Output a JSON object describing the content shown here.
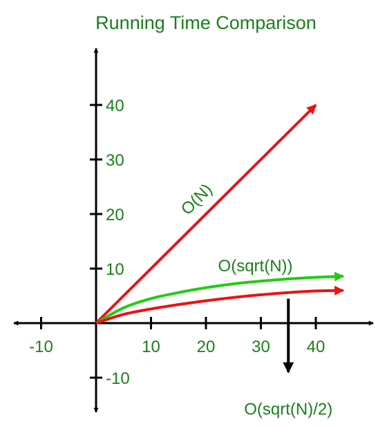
{
  "chart_data": {
    "type": "line",
    "title": "Running Time Comparison",
    "xlabel": "",
    "ylabel": "",
    "xlim": [
      -12,
      48
    ],
    "ylim": [
      -13,
      45
    ],
    "xticks": [
      -10,
      10,
      20,
      30,
      40
    ],
    "yticks": [
      40,
      30,
      20,
      10,
      -10
    ],
    "grid": false,
    "series": [
      {
        "name": "O(N)",
        "color": "#ee1111",
        "x": [
          0,
          40
        ],
        "y": [
          0,
          40
        ]
      },
      {
        "name": "O(sqrt(N))",
        "color": "#22cc11",
        "x": [
          0,
          5,
          10,
          15,
          20,
          25,
          30,
          35,
          40,
          45
        ],
        "y": [
          0,
          2.8,
          4.5,
          5.6,
          6.5,
          7.2,
          7.7,
          8.1,
          8.4,
          8.6
        ]
      },
      {
        "name": "",
        "color": "#ee1111",
        "x": [
          0,
          5,
          10,
          15,
          20,
          25,
          30,
          35,
          40,
          45
        ],
        "y": [
          0,
          1.6,
          2.6,
          3.4,
          4.1,
          4.7,
          5.2,
          5.6,
          5.9,
          6.0
        ]
      }
    ],
    "annotations": [
      {
        "text": "O(N)",
        "at": [
          19,
          22
        ],
        "rotate": -45
      },
      {
        "text": "O(sqrt(N))",
        "at": [
          29,
          9.5
        ]
      },
      {
        "text": "O(sqrt(N)/2)",
        "at": [
          35,
          -13
        ],
        "arrow_from": [
          35,
          4.5
        ],
        "arrow_to": [
          35,
          -9
        ]
      }
    ]
  }
}
